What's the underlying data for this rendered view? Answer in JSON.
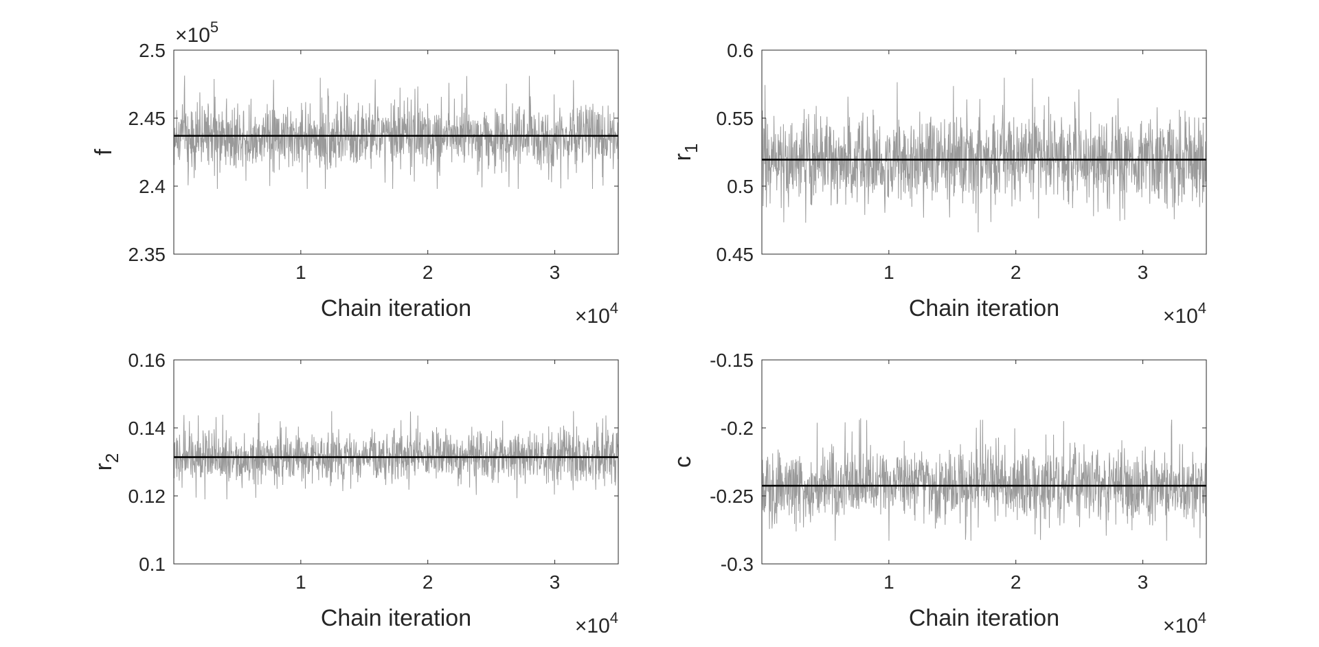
{
  "figure": {
    "colors": {
      "background": "#ffffff",
      "axes": "#262626",
      "trace": "#9a9a9a",
      "mean_line": "#000000"
    }
  },
  "chart_data": [
    {
      "type": "line",
      "panel": "top-left",
      "ylabel": "f",
      "ylabel_sub": "",
      "xlabel": "Chain iteration",
      "x_exponent_label": "×10",
      "x_exponent": "4",
      "y_exponent_label": "×10",
      "y_exponent": "5",
      "xlim": [
        0,
        3.5
      ],
      "ylim": [
        2.35,
        2.5
      ],
      "xticks": [
        1,
        2,
        3
      ],
      "xtick_labels": [
        "1",
        "2",
        "3"
      ],
      "yticks": [
        2.35,
        2.4,
        2.45,
        2.5
      ],
      "ytick_labels": [
        "2.35",
        "2.4",
        "2.45",
        "2.5"
      ],
      "grid": false,
      "series": [
        {
          "values_summary": {
            "mean": 2.437,
            "min": 2.398,
            "max": 2.482
          }
        },
        {
          "values": [
            2.437,
            2.437
          ]
        }
      ]
    },
    {
      "type": "line",
      "panel": "top-right",
      "ylabel": "r",
      "ylabel_sub": "1",
      "xlabel": "Chain iteration",
      "x_exponent_label": "×10",
      "x_exponent": "4",
      "xlim": [
        0,
        3.5
      ],
      "ylim": [
        0.45,
        0.6
      ],
      "xticks": [
        1,
        2,
        3
      ],
      "xtick_labels": [
        "1",
        "2",
        "3"
      ],
      "yticks": [
        0.45,
        0.5,
        0.55,
        0.6
      ],
      "ytick_labels": [
        "0.45",
        "0.5",
        "0.55",
        "0.6"
      ],
      "grid": false,
      "series": [
        {
          "values_summary": {
            "mean": 0.5195,
            "min": 0.466,
            "max": 0.58
          }
        },
        {
          "values": [
            0.5195,
            0.5195
          ]
        }
      ]
    },
    {
      "type": "line",
      "panel": "bottom-left",
      "ylabel": "r",
      "ylabel_sub": "2",
      "xlabel": "Chain iteration",
      "x_exponent_label": "×10",
      "x_exponent": "4",
      "xlim": [
        0,
        3.5
      ],
      "ylim": [
        0.1,
        0.16
      ],
      "xticks": [
        1,
        2,
        3
      ],
      "xtick_labels": [
        "1",
        "2",
        "3"
      ],
      "yticks": [
        0.1,
        0.12,
        0.14,
        0.16
      ],
      "ytick_labels": [
        "0.1",
        "0.12",
        "0.14",
        "0.16"
      ],
      "grid": false,
      "series": [
        {
          "values_summary": {
            "mean": 0.1314,
            "min": 0.119,
            "max": 0.145
          }
        },
        {
          "values": [
            0.1314,
            0.1314
          ]
        }
      ]
    },
    {
      "type": "line",
      "panel": "bottom-right",
      "ylabel": "c",
      "ylabel_sub": "",
      "xlabel": "Chain iteration",
      "x_exponent_label": "×10",
      "x_exponent": "4",
      "xlim": [
        0,
        3.5
      ],
      "ylim": [
        -0.3,
        -0.15
      ],
      "xticks": [
        1,
        2,
        3
      ],
      "xtick_labels": [
        "1",
        "2",
        "3"
      ],
      "yticks": [
        -0.3,
        -0.25,
        -0.2,
        -0.15
      ],
      "ytick_labels": [
        "-0.3",
        "-0.25",
        "-0.2",
        "-0.15"
      ],
      "grid": false,
      "series": [
        {
          "values_summary": {
            "mean": -0.2425,
            "min": -0.283,
            "max": -0.193
          }
        },
        {
          "values": [
            -0.2425,
            -0.2425
          ]
        }
      ]
    }
  ]
}
